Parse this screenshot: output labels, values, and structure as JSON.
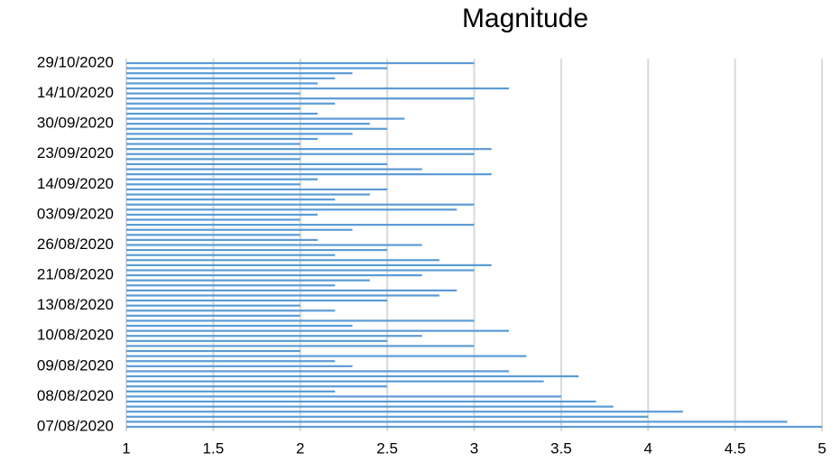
{
  "chart_data": {
    "type": "hbar",
    "title": "Magnitude",
    "categories": [
      "07/08/2020",
      null,
      null,
      null,
      null,
      null,
      "08/08/2020",
      null,
      null,
      null,
      null,
      null,
      "09/08/2020",
      null,
      null,
      null,
      null,
      null,
      "10/08/2020",
      null,
      null,
      null,
      null,
      null,
      "13/08/2020",
      null,
      null,
      null,
      null,
      null,
      "21/08/2020",
      null,
      null,
      null,
      null,
      null,
      "26/08/2020",
      null,
      null,
      null,
      null,
      null,
      "03/09/2020",
      null,
      null,
      null,
      null,
      null,
      "14/09/2020",
      null,
      null,
      null,
      null,
      null,
      "23/09/2020",
      null,
      null,
      null,
      null,
      null,
      "30/09/2020",
      null,
      null,
      null,
      null,
      null,
      "14/10/2020",
      null,
      null,
      null,
      null,
      null,
      "29/10/2020"
    ],
    "values": [
      5.0,
      4.8,
      4.0,
      4.2,
      3.8,
      3.7,
      3.5,
      2.2,
      2.5,
      3.4,
      3.6,
      3.2,
      2.3,
      2.2,
      3.3,
      2.0,
      3.0,
      2.5,
      2.7,
      3.2,
      2.3,
      3.0,
      2.0,
      2.2,
      2.0,
      2.5,
      2.8,
      2.9,
      2.2,
      2.4,
      2.7,
      3.0,
      3.1,
      2.8,
      2.2,
      2.5,
      2.7,
      2.1,
      2.0,
      2.3,
      3.0,
      2.0,
      2.1,
      2.9,
      3.0,
      2.2,
      2.4,
      2.5,
      2.0,
      2.1,
      3.1,
      2.7,
      2.5,
      2.0,
      3.0,
      3.1,
      2.0,
      2.1,
      2.3,
      2.5,
      2.4,
      2.6,
      2.1,
      2.0,
      2.2,
      3.0,
      2.0,
      3.2,
      2.1,
      2.2,
      2.3,
      2.5,
      3.0
    ],
    "color": "#5b9bd5",
    "xlim": [
      1,
      5
    ],
    "xticks": [
      1,
      1.5,
      2,
      2.5,
      3,
      3.5,
      4,
      4.5,
      5
    ],
    "grid": true
  }
}
